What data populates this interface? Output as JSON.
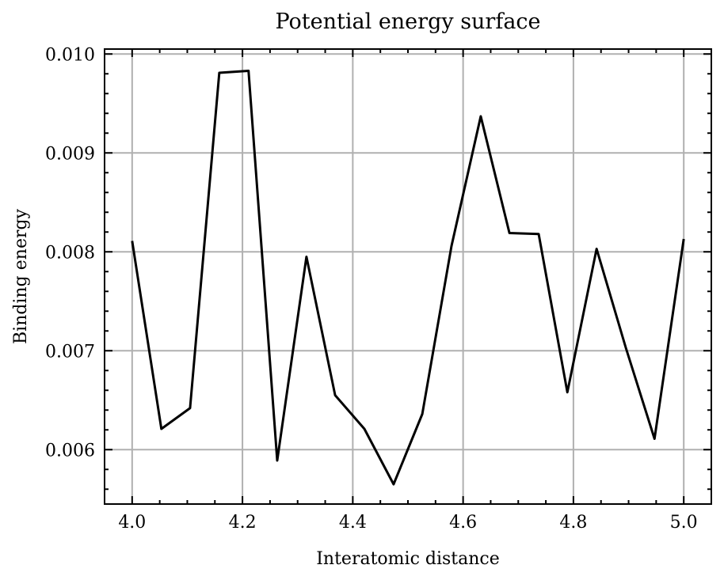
{
  "chart_data": {
    "type": "line",
    "title": "Potential energy surface",
    "xlabel": "Interatomic distance",
    "ylabel": "Binding energy",
    "xlim": [
      3.95,
      5.05
    ],
    "ylim": [
      0.00545,
      0.01005
    ],
    "xticks": [
      4.0,
      4.2,
      4.4,
      4.6,
      4.8,
      5.0
    ],
    "xtick_labels": [
      "4.0",
      "4.2",
      "4.4",
      "4.6",
      "4.8",
      "5.0"
    ],
    "yticks": [
      0.006,
      0.007,
      0.008,
      0.009,
      0.01
    ],
    "ytick_labels": [
      "0.006",
      "0.007",
      "0.008",
      "0.009",
      "0.010"
    ],
    "grid": true,
    "series": [
      {
        "color": "#000000",
        "x": [
          4.0,
          4.053,
          4.105,
          4.158,
          4.211,
          4.263,
          4.316,
          4.368,
          4.421,
          4.474,
          4.526,
          4.579,
          4.632,
          4.684,
          4.737,
          4.789,
          4.842,
          4.895,
          4.947,
          5.0
        ],
        "y": [
          0.00811,
          0.00621,
          0.00642,
          0.00981,
          0.00983,
          0.00589,
          0.00795,
          0.00655,
          0.00621,
          0.00565,
          0.00636,
          0.00806,
          0.00937,
          0.00819,
          0.00818,
          0.00658,
          0.00803,
          0.00703,
          0.00611,
          0.00813
        ]
      }
    ]
  }
}
